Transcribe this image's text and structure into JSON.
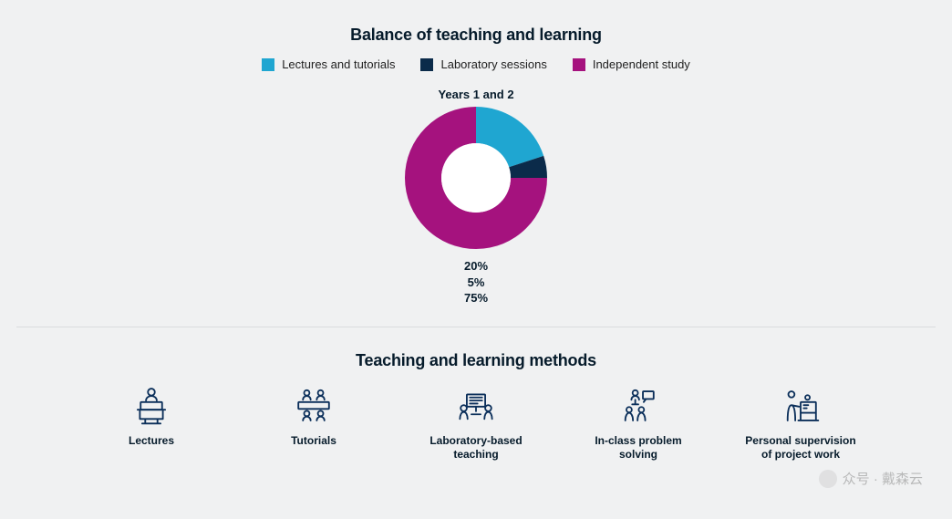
{
  "section1": {
    "title": "Balance of teaching and learning",
    "legend": [
      {
        "label": "Lectures and tutorials",
        "color": "#1fa6d1"
      },
      {
        "label": "Laboratory sessions",
        "color": "#0b2b4a"
      },
      {
        "label": "Independent study",
        "color": "#a5127e"
      }
    ],
    "chart": {
      "type": "donut",
      "title": "Years 1 and 2",
      "outer_radius": 78,
      "inner_radius": 38,
      "start_angle_deg": 0,
      "background_color": "#f0f1f2",
      "slices": [
        {
          "name": "Lectures and tutorials",
          "value": 20,
          "color": "#1fa6d1"
        },
        {
          "name": "Laboratory sessions",
          "value": 5,
          "color": "#0b2b4a"
        },
        {
          "name": "Independent study",
          "value": 75,
          "color": "#a5127e"
        }
      ],
      "value_labels": [
        "20%",
        "5%",
        "75%"
      ],
      "value_label_fontsize": 13
    }
  },
  "section2": {
    "title": "Teaching and learning methods",
    "icon_stroke_color": "#0b2f5a",
    "items": [
      {
        "label": "Lectures"
      },
      {
        "label": "Tutorials"
      },
      {
        "label": "Laboratory-based teaching"
      },
      {
        "label": "In-class problem solving"
      },
      {
        "label": "Personal supervision of project work"
      }
    ]
  },
  "watermark": "众号 · 戴森云"
}
